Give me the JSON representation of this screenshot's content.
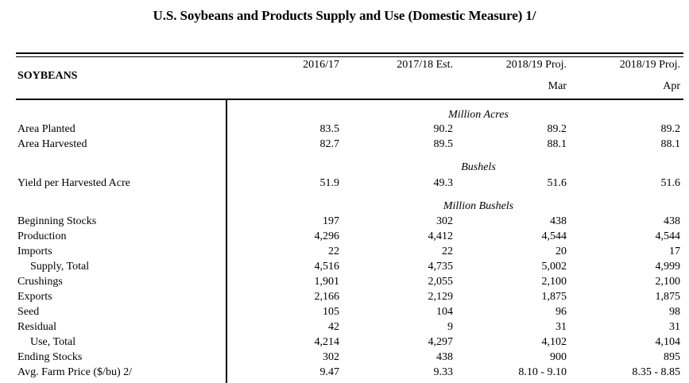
{
  "title": "U.S. Soybeans and Products Supply and Use (Domestic Measure) 1/",
  "section": "SOYBEANS",
  "columns": [
    {
      "line1": "2016/17",
      "line2": ""
    },
    {
      "line1": "2017/18 Est.",
      "line2": ""
    },
    {
      "line1": "2018/19 Proj.",
      "line2": "Mar"
    },
    {
      "line1": "2018/19 Proj.",
      "line2": "Apr"
    }
  ],
  "units": {
    "acres": "Million Acres",
    "bushels": "Bushels",
    "million_bushels": "Million Bushels"
  },
  "rows": [
    {
      "label": "Area Planted",
      "values": [
        "83.5",
        "90.2",
        "89.2",
        "89.2"
      ]
    },
    {
      "label": "Area Harvested",
      "values": [
        "82.7",
        "89.5",
        "88.1",
        "88.1"
      ]
    },
    {
      "label": "Yield  per Harvested Acre",
      "values": [
        "51.9",
        "49.3",
        "51.6",
        "51.6"
      ]
    },
    {
      "label": "Beginning Stocks",
      "values": [
        "197",
        "302",
        "438",
        "438"
      ]
    },
    {
      "label": "Production",
      "values": [
        "4,296",
        "4,412",
        "4,544",
        "4,544"
      ]
    },
    {
      "label": "Imports",
      "values": [
        "22",
        "22",
        "20",
        "17"
      ]
    },
    {
      "label": "Supply, Total",
      "values": [
        "4,516",
        "4,735",
        "5,002",
        "4,999"
      ]
    },
    {
      "label": "Crushings",
      "values": [
        "1,901",
        "2,055",
        "2,100",
        "2,100"
      ]
    },
    {
      "label": "Exports",
      "values": [
        "2,166",
        "2,129",
        "1,875",
        "1,875"
      ]
    },
    {
      "label": "Seed",
      "values": [
        "105",
        "104",
        "96",
        "98"
      ]
    },
    {
      "label": "Residual",
      "values": [
        "42",
        "9",
        "31",
        "31"
      ]
    },
    {
      "label": "Use, Total",
      "values": [
        "4,214",
        "4,297",
        "4,102",
        "4,104"
      ]
    },
    {
      "label": "Ending Stocks",
      "values": [
        "302",
        "438",
        "900",
        "895"
      ]
    },
    {
      "label": "Avg. Farm Price ($/bu)  2/",
      "values": [
        "9.47",
        "9.33",
        "8.10 - 9.10",
        "8.35 - 8.85"
      ]
    }
  ]
}
